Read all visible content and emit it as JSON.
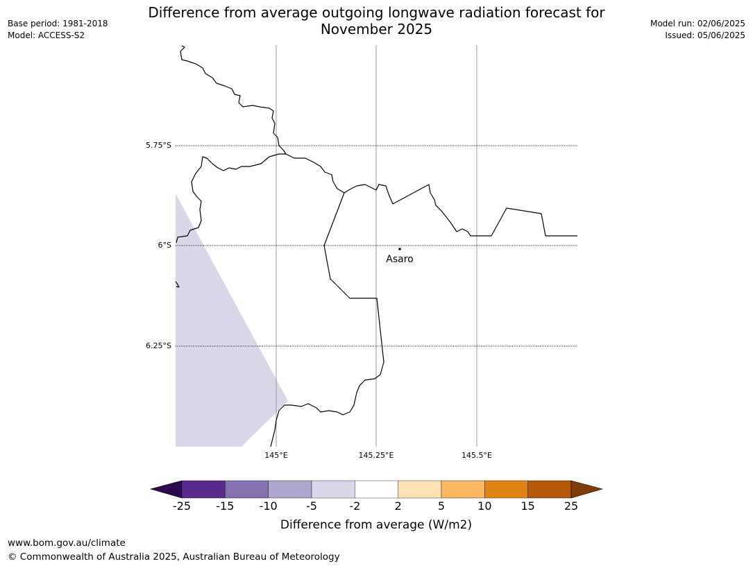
{
  "title_line1": "Difference from average outgoing longwave radiation forecast for",
  "title_line2": "November 2025",
  "meta_left": {
    "base_period": "Base period: 1981-2018",
    "model": "Model: ACCESS-S2"
  },
  "meta_right": {
    "model_run": "Model run: 02/06/2025",
    "issued": "Issued: 05/06/2025"
  },
  "map": {
    "lat_labels": [
      "5.75°S",
      "6°S",
      "6.25°S"
    ],
    "lon_labels": [
      "145°E",
      "145.25°E",
      "145.5°E"
    ],
    "place": {
      "name": "Asaro"
    },
    "anomaly_fill_color": "#d8d8ea"
  },
  "colorbar": {
    "label": "Difference from average (W/m2)",
    "ticks": [
      "-25",
      "-15",
      "-10",
      "-5",
      "-2",
      "2",
      "5",
      "10",
      "15",
      "25"
    ],
    "colors": [
      "#5a2a8c",
      "#8572ae",
      "#b0a7d0",
      "#d8d8ea",
      "#ffffff",
      "#fde0b4",
      "#fbb862",
      "#e08416",
      "#b35806"
    ],
    "under_color": "#2d0a4e",
    "over_color": "#7f3b08"
  },
  "footer": {
    "url": "www.bom.gov.au/climate",
    "copyright": "© Commonwealth of Australia 2025, Australian Bureau of Meteorology"
  }
}
